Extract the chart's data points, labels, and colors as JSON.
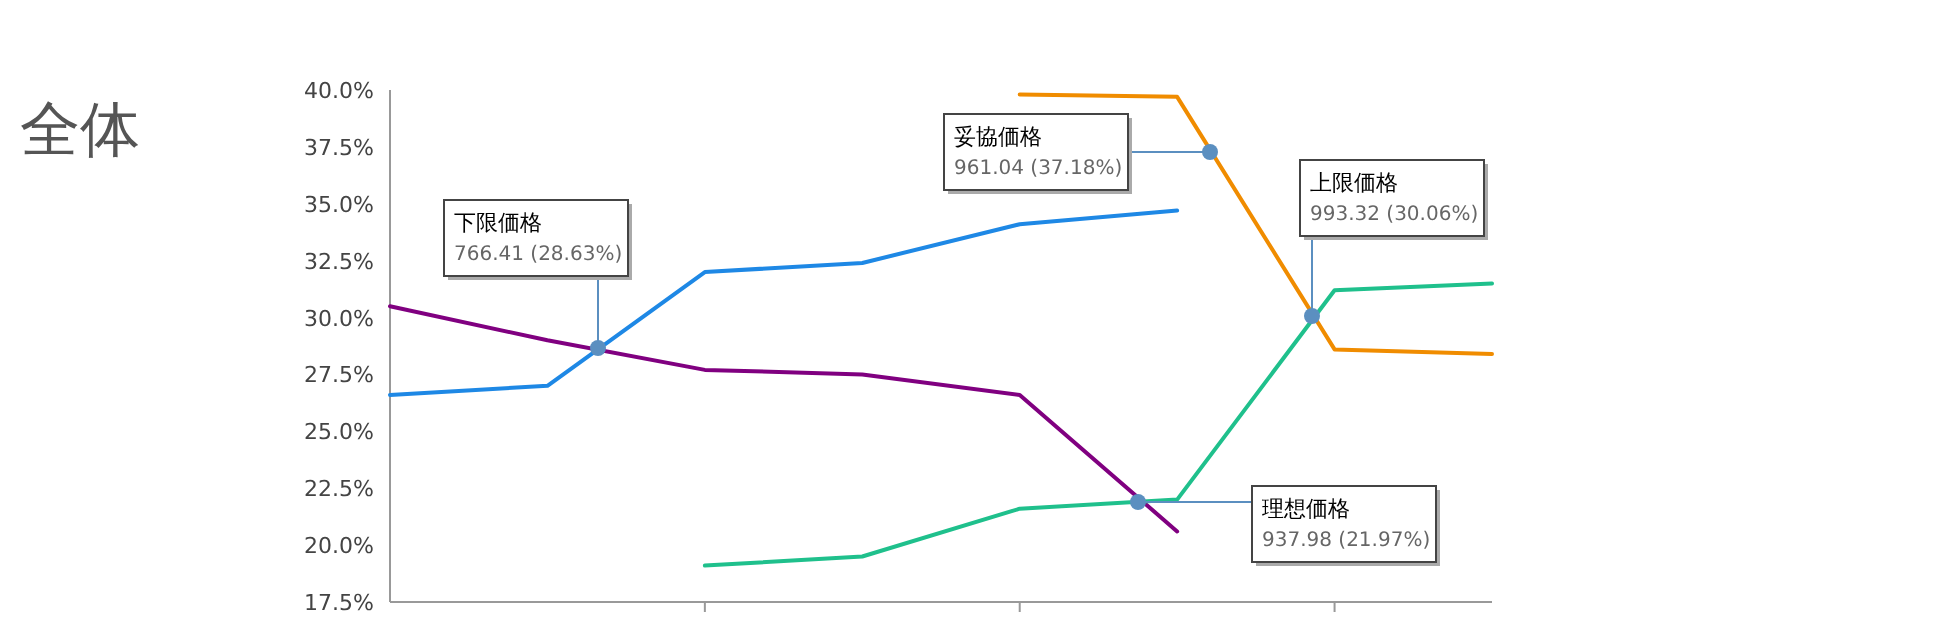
{
  "chart_data": {
    "type": "line",
    "title": "全体",
    "categories": [
      null,
      null,
      null,
      null,
      null,
      null,
      null,
      null
    ],
    "ylim": [
      17.5,
      40
    ],
    "yticks": [
      {
        "value": 17.5,
        "label": "17.5%"
      },
      {
        "value": 20,
        "label": "20.0%"
      },
      {
        "value": 22.5,
        "label": "22.5%"
      },
      {
        "value": 25,
        "label": "25.0%"
      },
      {
        "value": 27.5,
        "label": "27.5%"
      },
      {
        "value": 30,
        "label": "30.0%"
      },
      {
        "value": 32.5,
        "label": "32.5%"
      },
      {
        "value": 35,
        "label": "35.0%"
      },
      {
        "value": 37.5,
        "label": "37.5%"
      },
      {
        "value": 40,
        "label": "40.0%"
      }
    ],
    "grid": false,
    "marker": "none",
    "line_style": "solid",
    "series": [
      {
        "color": "#1e88e5",
        "values": [
          26.6,
          27.0,
          32.0,
          32.4,
          34.1,
          34.7,
          null,
          null
        ]
      },
      {
        "color": "#f08c00",
        "values": [
          null,
          null,
          null,
          null,
          39.8,
          39.7,
          28.6,
          28.4
        ]
      },
      {
        "color": "#800080",
        "values": [
          30.5,
          29.0,
          27.7,
          27.5,
          26.6,
          20.6,
          null,
          null
        ]
      },
      {
        "color": "#1fc08c",
        "values": [
          null,
          null,
          19.1,
          19.5,
          21.6,
          22.0,
          31.2,
          31.5
        ]
      }
    ],
    "annotations": [
      "下限価格\n766.41 (28.63%)",
      "妥協価格\n961.04 (37.18%)",
      "上限価格\n993.32 (30.06%)",
      "理想価格\n937.98 (21.97%)"
    ]
  }
}
